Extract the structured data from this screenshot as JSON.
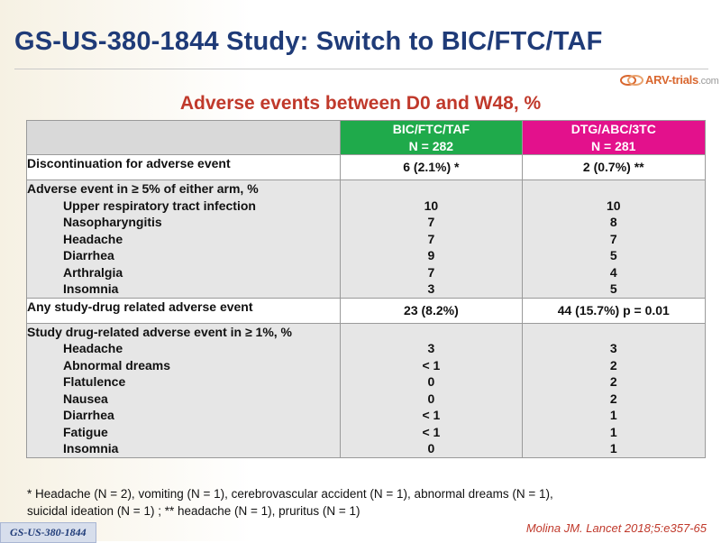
{
  "title": "GS-US-380-1844 Study: Switch to BIC/FTC/TAF",
  "logo": {
    "name": "ARV-trials",
    "suffix": ".com"
  },
  "subtitle": "Adverse events between D0 and W48, %",
  "table": {
    "arm1": {
      "name": "BIC/FTC/TAF",
      "n": "N = 282",
      "color": "#1faa4b"
    },
    "arm2": {
      "name": "DTG/ABC/3TC",
      "n": "N = 281",
      "color": "#e3118c"
    },
    "rows": {
      "discontinuation": {
        "label": "Discontinuation for adverse event",
        "arm1": "6 (2.1%) *",
        "arm2": "2 (0.7%) **"
      },
      "ae5": {
        "label": "Adverse event in ≥ 5% of either arm, %",
        "items": [
          {
            "label": "Upper respiratory tract infection",
            "arm1": "10",
            "arm2": "10"
          },
          {
            "label": "Nasopharyngitis",
            "arm1": "7",
            "arm2": "8"
          },
          {
            "label": "Headache",
            "arm1": "7",
            "arm2": "7"
          },
          {
            "label": "Diarrhea",
            "arm1": "9",
            "arm2": "5"
          },
          {
            "label": "Arthralgia",
            "arm1": "7",
            "arm2": "4"
          },
          {
            "label": "Insomnia",
            "arm1": "3",
            "arm2": "5"
          }
        ]
      },
      "anyrelated": {
        "label": "Any study-drug related adverse event",
        "arm1": "23 (8.2%)",
        "arm2": "44 (15.7%) p = 0.01"
      },
      "related1": {
        "label": "Study drug-related adverse event in ≥ 1%, %",
        "items": [
          {
            "label": "Headache",
            "arm1": "3",
            "arm2": "3"
          },
          {
            "label": "Abnormal dreams",
            "arm1": "< 1",
            "arm2": "2"
          },
          {
            "label": "Flatulence",
            "arm1": "0",
            "arm2": "2"
          },
          {
            "label": "Nausea",
            "arm1": "0",
            "arm2": "2"
          },
          {
            "label": "Diarrhea",
            "arm1": "< 1",
            "arm2": "1"
          },
          {
            "label": "Fatigue",
            "arm1": "< 1",
            "arm2": "1"
          },
          {
            "label": "Insomnia",
            "arm1": "0",
            "arm2": "1"
          }
        ]
      }
    }
  },
  "footnote": {
    "line1": "* Headache (N = 2), vomiting (N = 1), cerebrovascular accident (N = 1), abnormal dreams (N = 1),",
    "line2": "suicidal ideation (N = 1) ; ** headache (N = 1), pruritus (N = 1)"
  },
  "badge": "GS-US-380-1844",
  "citation": "Molina JM. Lancet 2018;5:e357-65"
}
